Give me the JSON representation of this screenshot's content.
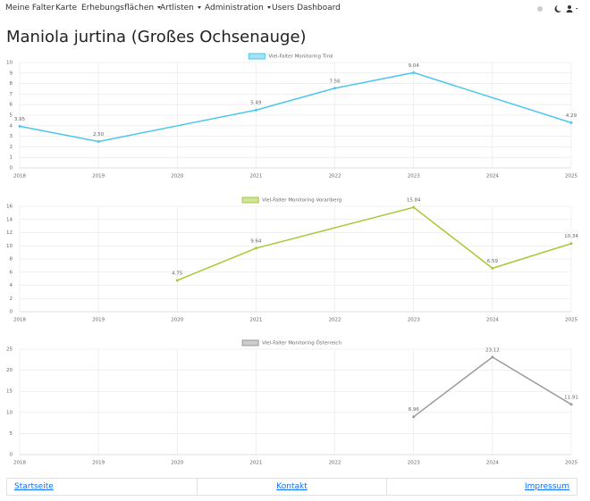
{
  "nav": {
    "items": [
      "Meine Falter",
      "Karte",
      "Erhebungsflächen",
      "Artlisten",
      "Administration",
      "Users Dashboard"
    ]
  },
  "page_title": "Maniola jurtina (Großes Ochsenauge)",
  "chart_data": [
    {
      "type": "line",
      "categories": [
        "2018",
        "2019",
        "2020",
        "2021",
        "2022",
        "2023",
        "2024",
        "2025"
      ],
      "series": [
        {
          "name": "Viel-Falter Monitoring Tirol",
          "color": "#4cc6ec",
          "values": [
            3.95,
            2.5,
            null,
            5.49,
            7.56,
            9.04,
            null,
            4.29
          ],
          "value_labels": [
            "3.95",
            "2.50",
            null,
            "5.49",
            "7.56",
            "9.04",
            null,
            "4.29"
          ]
        }
      ],
      "ylim": [
        0,
        10
      ],
      "yticks": [
        0,
        1,
        2,
        3,
        4,
        5,
        6,
        7,
        8,
        9,
        10
      ],
      "grid": true,
      "span_gaps": true,
      "legend": "top"
    },
    {
      "type": "line",
      "categories": [
        "2018",
        "2019",
        "2020",
        "2021",
        "2022",
        "2023",
        "2024",
        "2025"
      ],
      "series": [
        {
          "name": "Viel-Falter Monitoring Vorarlberg",
          "color": "#a6c936",
          "values": [
            null,
            null,
            4.75,
            9.64,
            null,
            15.84,
            6.59,
            10.34
          ]
        }
      ],
      "ylim": [
        0,
        16
      ],
      "yticks": [
        0,
        2,
        4,
        6,
        8,
        10,
        12,
        14,
        16
      ],
      "grid": true,
      "span_gaps": true,
      "legend": "top"
    },
    {
      "type": "line",
      "categories": [
        "2018",
        "2019",
        "2020",
        "2021",
        "2022",
        "2023",
        "2024",
        "2025"
      ],
      "series": [
        {
          "name": "Viel-Falter Monitoring Österreich",
          "color": "#9a9a9a",
          "values": [
            null,
            null,
            null,
            null,
            null,
            8.96,
            23.12,
            11.91
          ]
        }
      ],
      "ylim": [
        0,
        25
      ],
      "yticks": [
        0,
        5,
        10,
        15,
        20,
        25
      ],
      "grid": true,
      "span_gaps": true,
      "legend": "top"
    }
  ],
  "footer": {
    "links": [
      "Startseite",
      "Kontakt",
      "Impressum"
    ]
  }
}
